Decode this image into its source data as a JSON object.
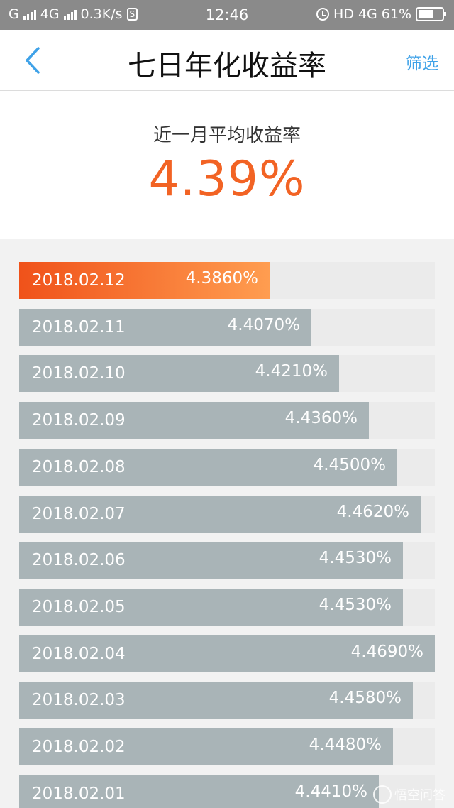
{
  "status_bar": {
    "carrier1": "G",
    "carrier2": "4G",
    "net_speed": "0.3K/s",
    "s_badge": "S",
    "time": "12:46",
    "hd": "HD",
    "net_type": "4G",
    "battery": "61%"
  },
  "nav": {
    "back_icon": "chevron-left-icon",
    "title": "七日年化收益率",
    "filter_label": "筛选"
  },
  "summary": {
    "label": "近一月平均收益率",
    "value": "4.39%"
  },
  "rates": [
    {
      "date": "2018.02.12",
      "rate": "4.3860%",
      "value": 4.386
    },
    {
      "date": "2018.02.11",
      "rate": "4.4070%",
      "value": 4.407
    },
    {
      "date": "2018.02.10",
      "rate": "4.4210%",
      "value": 4.421
    },
    {
      "date": "2018.02.09",
      "rate": "4.4360%",
      "value": 4.436
    },
    {
      "date": "2018.02.08",
      "rate": "4.4500%",
      "value": 4.45
    },
    {
      "date": "2018.02.07",
      "rate": "4.4620%",
      "value": 4.462
    },
    {
      "date": "2018.02.06",
      "rate": "4.4530%",
      "value": 4.453
    },
    {
      "date": "2018.02.05",
      "rate": "4.4530%",
      "value": 4.453
    },
    {
      "date": "2018.02.04",
      "rate": "4.4690%",
      "value": 4.469
    },
    {
      "date": "2018.02.03",
      "rate": "4.4580%",
      "value": 4.458
    },
    {
      "date": "2018.02.02",
      "rate": "4.4480%",
      "value": 4.448
    },
    {
      "date": "2018.02.01",
      "rate": "4.4410%",
      "value": 4.441
    }
  ],
  "colors": {
    "accent": "#f26324",
    "bar": "#a9b4b7",
    "link": "#3fa2e8"
  },
  "watermark": "悟空问答"
}
